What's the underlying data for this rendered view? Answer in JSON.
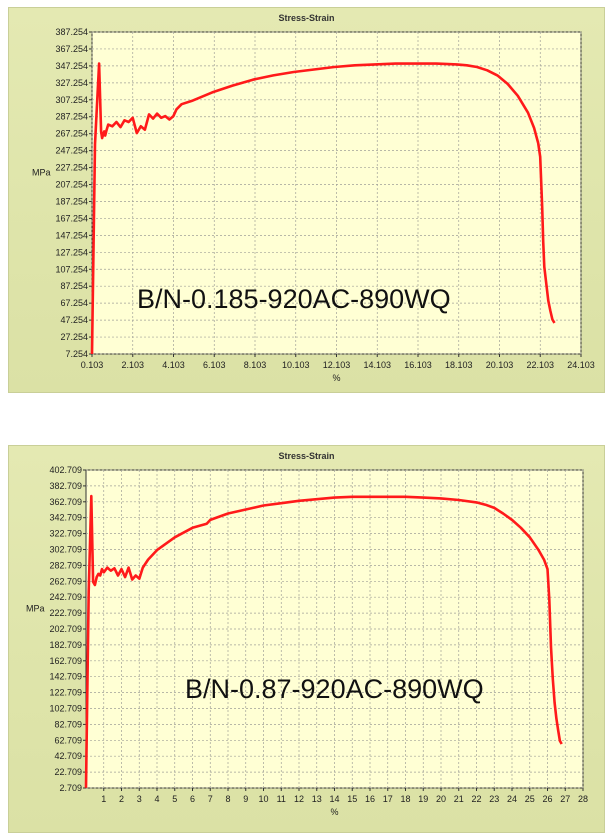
{
  "chart_data": [
    {
      "type": "line",
      "title": "Stress-Strain",
      "xlabel": "%",
      "ylabel": "MPa",
      "annotation": "B/N-0.185-920AC-890WQ",
      "xlim": [
        0.103,
        24.103
      ],
      "ylim": [
        7.254,
        387.254
      ],
      "x_ticks": [
        "0.103",
        "2.103",
        "4.103",
        "6.103",
        "8.103",
        "10.103",
        "12.103",
        "14.103",
        "16.103",
        "18.103",
        "20.103",
        "22.103",
        "24.103"
      ],
      "y_ticks": [
        "7.254",
        "27.254",
        "47.254",
        "67.254",
        "87.254",
        "107.254",
        "127.254",
        "147.254",
        "167.254",
        "187.254",
        "207.254",
        "227.254",
        "247.254",
        "267.254",
        "287.254",
        "307.254",
        "327.254",
        "347.254",
        "367.254",
        "387.254"
      ],
      "series_color": "#ff1a1a",
      "x": [
        0.103,
        0.25,
        0.45,
        0.55,
        0.6,
        0.65,
        0.7,
        0.75,
        0.8,
        0.9,
        1.1,
        1.3,
        1.5,
        1.7,
        1.9,
        2.1,
        2.3,
        2.5,
        2.7,
        2.9,
        3.1,
        3.3,
        3.5,
        3.7,
        3.9,
        4.1,
        4.25,
        4.5,
        5,
        6,
        7,
        8,
        9,
        10,
        11,
        12,
        13,
        14,
        15,
        16,
        17,
        18,
        18.5,
        19,
        19.5,
        20,
        20.5,
        21,
        21.5,
        21.8,
        22.0,
        22.1,
        22.2,
        22.25,
        22.3,
        22.4,
        22.5,
        22.6,
        22.7,
        22.8
      ],
      "y": [
        7.3,
        255,
        350,
        270,
        262,
        266,
        270,
        265,
        270,
        278,
        276,
        281,
        275,
        283,
        281,
        286,
        268,
        276,
        272,
        290,
        285,
        291,
        286,
        288,
        284,
        288,
        296,
        302,
        306,
        316,
        324,
        331,
        336,
        340,
        343,
        346,
        348,
        349,
        350,
        350,
        350,
        349,
        348,
        346,
        342,
        336,
        326,
        312,
        292,
        274,
        256,
        240,
        180,
        140,
        110,
        90,
        70,
        58,
        48,
        44
      ]
    },
    {
      "type": "line",
      "title": "Stress-Strain",
      "xlabel": "%",
      "ylabel": "MPa",
      "annotation": "B/N-0.87-920AC-890WQ",
      "xlim": [
        0,
        28
      ],
      "ylim": [
        2.709,
        402.709
      ],
      "x_ticks": [
        "1",
        "2",
        "3",
        "4",
        "5",
        "6",
        "7",
        "8",
        "9",
        "10",
        "11",
        "12",
        "13",
        "14",
        "15",
        "16",
        "17",
        "18",
        "19",
        "20",
        "21",
        "22",
        "23",
        "24",
        "25",
        "26",
        "27",
        "28"
      ],
      "y_ticks": [
        "2.709",
        "22.709",
        "42.709",
        "62.709",
        "82.709",
        "102.709",
        "122.709",
        "142.709",
        "162.709",
        "182.709",
        "202.709",
        "222.709",
        "242.709",
        "262.709",
        "282.709",
        "302.709",
        "322.709",
        "342.709",
        "362.709",
        "382.709",
        "402.709"
      ],
      "series_color": "#ff1a1a",
      "x": [
        0,
        0.15,
        0.3,
        0.4,
        0.5,
        0.6,
        0.7,
        0.8,
        0.9,
        1.0,
        1.2,
        1.4,
        1.6,
        1.8,
        2.0,
        2.2,
        2.4,
        2.6,
        2.8,
        3.0,
        3.2,
        3.5,
        4,
        5,
        6,
        6.8,
        7,
        8,
        9,
        10,
        11,
        12,
        13,
        14,
        15,
        16,
        17,
        18,
        19,
        20,
        21,
        22,
        22.5,
        23,
        23.5,
        24,
        24.5,
        25,
        25.5,
        25.8,
        26.0,
        26.1,
        26.2,
        26.3,
        26.4,
        26.5,
        26.6,
        26.7,
        26.8
      ],
      "y": [
        3,
        250,
        370,
        262,
        258,
        268,
        272,
        270,
        278,
        274,
        280,
        276,
        279,
        270,
        278,
        268,
        280,
        265,
        270,
        266,
        280,
        290,
        302,
        318,
        330,
        335,
        340,
        348,
        353,
        358,
        361,
        364,
        366,
        368,
        369,
        369,
        369,
        369,
        368,
        367,
        365,
        362,
        359,
        355,
        348,
        340,
        330,
        318,
        302,
        290,
        278,
        240,
        180,
        140,
        110,
        90,
        75,
        62,
        58
      ]
    }
  ]
}
